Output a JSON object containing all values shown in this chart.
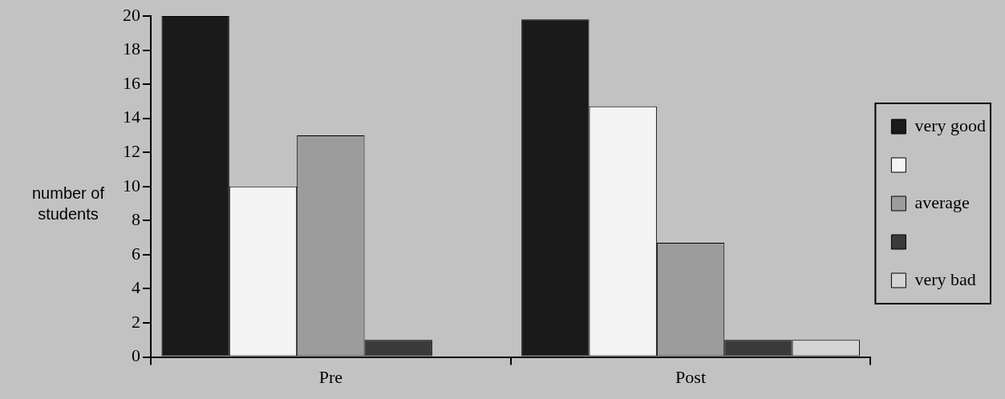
{
  "chart_data": {
    "type": "bar",
    "ylabel": "number of students",
    "categories": [
      "Pre",
      "Post"
    ],
    "series": [
      {
        "name": "very good",
        "color": "#1a1a1a",
        "values": [
          20,
          19.8
        ]
      },
      {
        "color": "#f4f4f4",
        "values": [
          10,
          14.7
        ]
      },
      {
        "name": "average",
        "color": "#9c9c9c",
        "values": [
          13,
          6.7
        ]
      },
      {
        "color": "#3a3a3a",
        "values": [
          1,
          1
        ]
      },
      {
        "name": "very bad",
        "color": "#d4d4d4",
        "values": [
          0,
          1
        ]
      }
    ],
    "ylim": [
      0,
      20
    ],
    "yticks": [
      0,
      2,
      4,
      6,
      8,
      10,
      12,
      14,
      16,
      18,
      20
    ],
    "grid": false,
    "legend": "right"
  }
}
